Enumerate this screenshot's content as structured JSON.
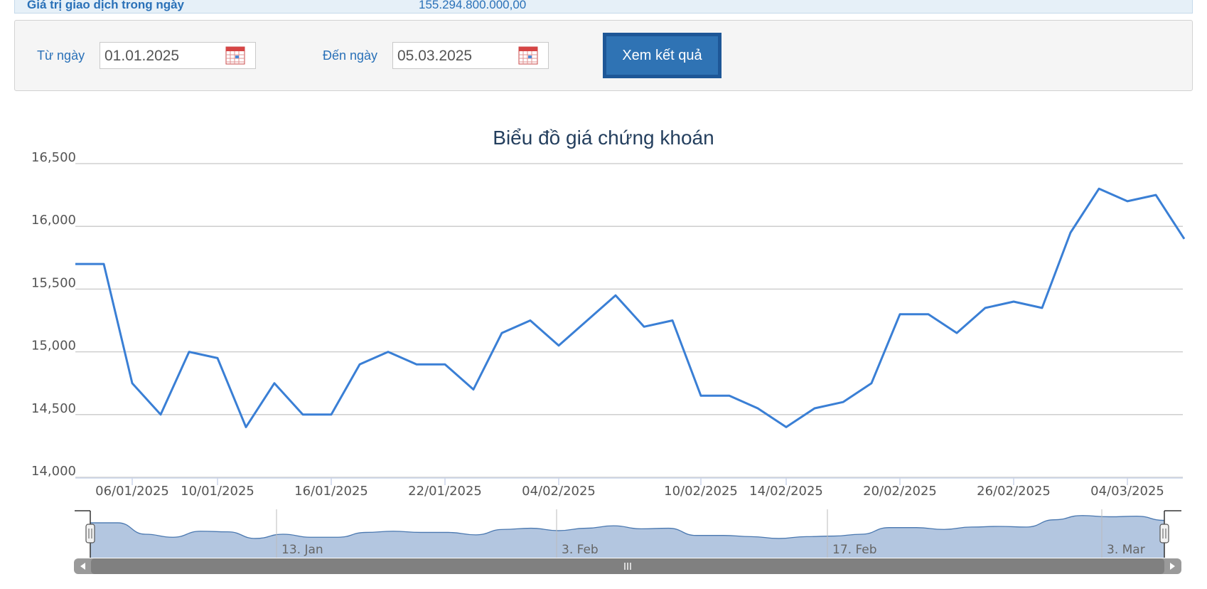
{
  "summary": {
    "trade_value_label": "Giá trị giao dịch trong ngày",
    "trade_value": "155.294.800.000,00"
  },
  "filter": {
    "from_label": "Từ ngày",
    "from_value": "01.01.2025",
    "to_label": "Đến ngày",
    "to_value": "05.03.2025",
    "submit_label": "Xem kết quả"
  },
  "chart_data": {
    "type": "line",
    "title": "Biểu đồ giá chứng khoán",
    "ylim": [
      14000,
      16500
    ],
    "yticks": [
      "14,000",
      "14,500",
      "15,000",
      "15,500",
      "16,000",
      "16,500"
    ],
    "x_tick_labels": [
      "06/01/2025",
      "10/01/2025",
      "16/01/2025",
      "22/01/2025",
      "04/02/2025",
      "10/02/2025",
      "14/02/2025",
      "20/02/2025",
      "26/02/2025",
      "04/03/2025"
    ],
    "grid": true,
    "series": [
      {
        "color": "#3a7fd5",
        "values": [
          15700,
          15700,
          14750,
          14500,
          15000,
          14950,
          14400,
          14750,
          14500,
          14500,
          14900,
          15000,
          14900,
          14900,
          14700,
          15150,
          15250,
          15050,
          15250,
          15450,
          15200,
          15250,
          14650,
          14650,
          14550,
          14400,
          14550,
          14600,
          14750,
          15300,
          15300,
          15150,
          15350,
          15400,
          15350,
          15950,
          16300,
          16200,
          16250,
          15900
        ]
      }
    ],
    "navigator": {
      "labels": [
        "13. Jan",
        "3. Feb",
        "17. Feb",
        "3. Mar"
      ]
    }
  }
}
